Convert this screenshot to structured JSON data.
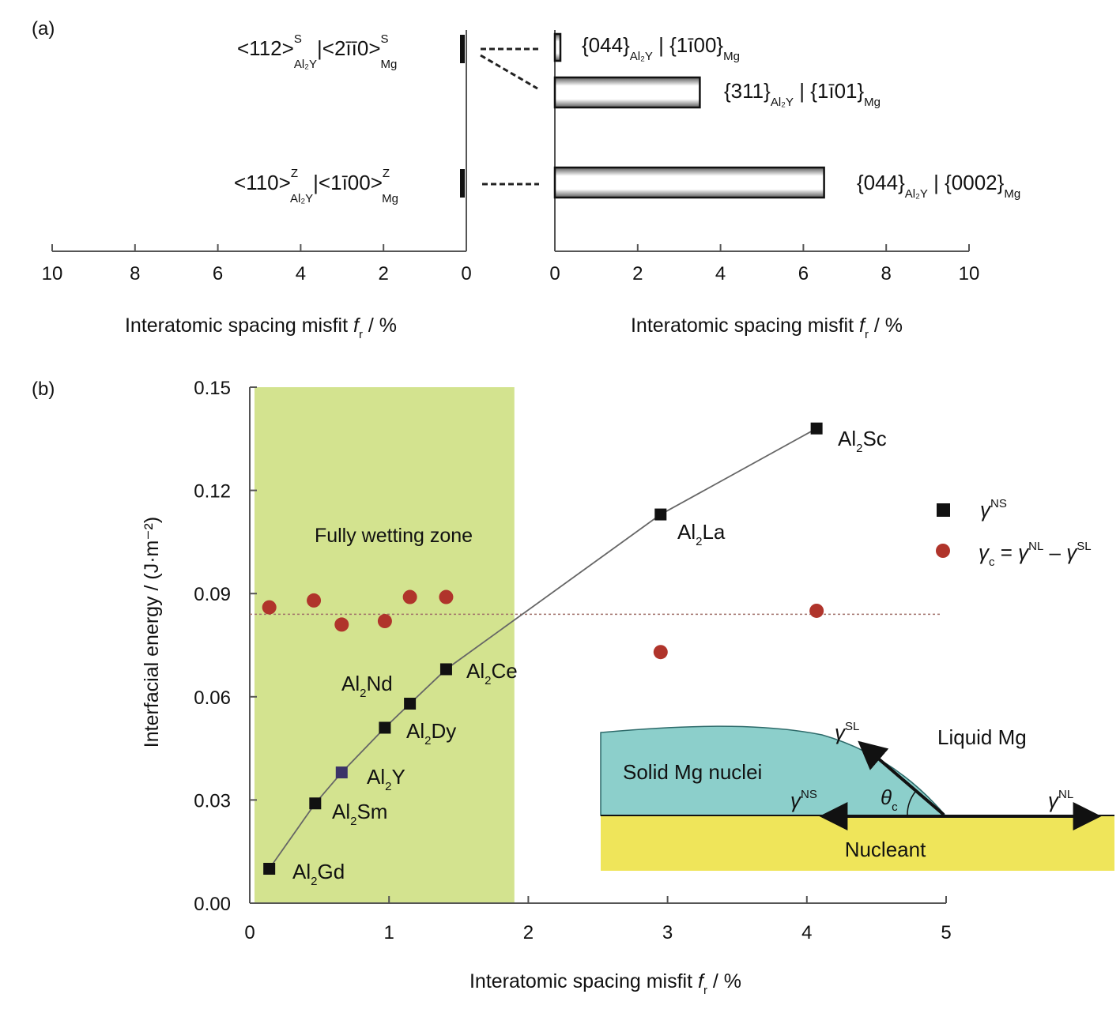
{
  "panel_a": {
    "label": "(a)",
    "xlabel_left": {
      "prefix": "Interatomic spacing misfit ",
      "var": "f",
      "sub": "r",
      "suffix": " / %"
    },
    "xlabel_right": {
      "prefix": "Interatomic spacing misfit ",
      "var": "f",
      "sub": "r",
      "suffix": " / %"
    },
    "left_ticks": [
      "10",
      "8",
      "6",
      "4",
      "2",
      "0"
    ],
    "right_ticks": [
      "0",
      "2",
      "4",
      "6",
      "8",
      "10"
    ],
    "directions": [
      {
        "main": "<112>",
        "sup": "S",
        "sub": "Al₂Y",
        "main2": "|<2īī0>",
        "sup2": "S",
        "sub2": "Mg"
      },
      {
        "main": "<110>",
        "sup": "Z",
        "sub": "Al₂Y",
        "main2": "|<1ī00>",
        "sup2": "Z",
        "sub2": "Mg"
      }
    ],
    "planes": [
      {
        "main": "{044}",
        "sub": "Al₂Y",
        "main2": " | {1ī00}",
        "sub2": "Mg"
      },
      {
        "main": "{311}",
        "sub": "Al₂Y",
        "main2": " | {1ī01}",
        "sub2": "Mg"
      },
      {
        "main": "{044}",
        "sub": "Al₂Y",
        "main2": " | {0002}",
        "sub2": "Mg"
      }
    ]
  },
  "panel_b": {
    "label": "(b)",
    "xlabel": {
      "prefix": "Interatomic spacing misfit ",
      "var": "f",
      "sub": "r",
      "suffix": " / %"
    },
    "ylabel": "Interfacial energy / (J·m⁻²)",
    "x_ticks": [
      "0",
      "1",
      "2",
      "3",
      "4",
      "5"
    ],
    "y_ticks": [
      "0.00",
      "0.03",
      "0.06",
      "0.09",
      "0.12",
      "0.15"
    ],
    "zone_label": "Fully wetting zone",
    "legend": {
      "ns": {
        "sym": "γ",
        "sup": "NS"
      },
      "c": {
        "sym": "γ",
        "sub": "c",
        "eq": " = ",
        "sym2": "γ",
        "sup2": "NL",
        "minus": " – ",
        "sym3": "γ",
        "sup3": "SL"
      }
    },
    "inset": {
      "liquid": "Liquid Mg",
      "solid": "Solid Mg nuclei",
      "nucleant": "Nucleant",
      "gamma_sl": {
        "sym": "γ",
        "sup": "SL"
      },
      "gamma_ns": {
        "sym": "γ",
        "sup": "NS"
      },
      "gamma_nl": {
        "sym": "γ",
        "sup": "NL"
      },
      "theta": {
        "sym": "θ",
        "sub": "c"
      }
    },
    "point_labels": [
      {
        "pre": "Al",
        "sub": "2",
        "post": "Sc"
      },
      {
        "pre": "Al",
        "sub": "2",
        "post": "La"
      },
      {
        "pre": "Al",
        "sub": "2",
        "post": "Ce"
      },
      {
        "pre": "Al",
        "sub": "2",
        "post": "Nd"
      },
      {
        "pre": "Al",
        "sub": "2",
        "post": "Dy"
      },
      {
        "pre": "Al",
        "sub": "2",
        "post": "Y"
      },
      {
        "pre": "Al",
        "sub": "2",
        "post": "Sm"
      },
      {
        "pre": "Al",
        "sub": "2",
        "post": "Gd"
      }
    ]
  },
  "chart_data": [
    {
      "type": "bar",
      "orientation": "horizontal",
      "xlabel": "Interatomic spacing misfit fr / %",
      "xlim": [
        0,
        10
      ],
      "categories": [
        "{044}Al2Y | {1ī00}Mg",
        "{311}Al2Y | {1ī01}Mg",
        "{044}Al2Y | {0002}Mg"
      ],
      "values": [
        0.1,
        3.5,
        6.5
      ],
      "left_axis": {
        "xlim": [
          10,
          0
        ],
        "categories": [
          "<112>S Al2Y | <2īī0>S Mg",
          "<110>Z Al2Y | <1ī00>Z Mg"
        ],
        "values": [
          0.0,
          0.0
        ]
      }
    },
    {
      "type": "scatter",
      "xlabel": "Interatomic spacing misfit fr / %",
      "ylabel": "Interfacial energy / (J·m⁻²)",
      "xlim": [
        0,
        5
      ],
      "ylim": [
        0,
        0.15
      ],
      "shaded_region": {
        "x": [
          0,
          1.9
        ],
        "color": "#d3e38f",
        "label": "Fully wetting zone"
      },
      "reference_line": {
        "y": 0.084,
        "style": "dotted"
      },
      "series": [
        {
          "name": "γNS",
          "marker": "square",
          "color": "#111111",
          "connected": true,
          "points": [
            {
              "x": 0.14,
              "y": 0.01,
              "label": "Al2Gd"
            },
            {
              "x": 0.47,
              "y": 0.029,
              "label": "Al2Sm"
            },
            {
              "x": 0.66,
              "y": 0.038,
              "label": "Al2Y",
              "color": "#3b3468"
            },
            {
              "x": 0.97,
              "y": 0.051,
              "label": "Al2Dy"
            },
            {
              "x": 1.15,
              "y": 0.058,
              "label": "Al2Nd"
            },
            {
              "x": 1.41,
              "y": 0.068,
              "label": "Al2Ce"
            },
            {
              "x": 2.95,
              "y": 0.113,
              "label": "Al2La"
            },
            {
              "x": 4.07,
              "y": 0.138,
              "label": "Al2Sc"
            }
          ]
        },
        {
          "name": "γc = γNL – γSL",
          "marker": "circle",
          "color": "#b0342b",
          "points": [
            {
              "x": 0.14,
              "y": 0.086
            },
            {
              "x": 0.46,
              "y": 0.088
            },
            {
              "x": 0.66,
              "y": 0.081
            },
            {
              "x": 0.97,
              "y": 0.082
            },
            {
              "x": 1.15,
              "y": 0.089
            },
            {
              "x": 1.41,
              "y": 0.089
            },
            {
              "x": 2.95,
              "y": 0.073
            },
            {
              "x": 4.07,
              "y": 0.085
            }
          ]
        }
      ]
    }
  ]
}
